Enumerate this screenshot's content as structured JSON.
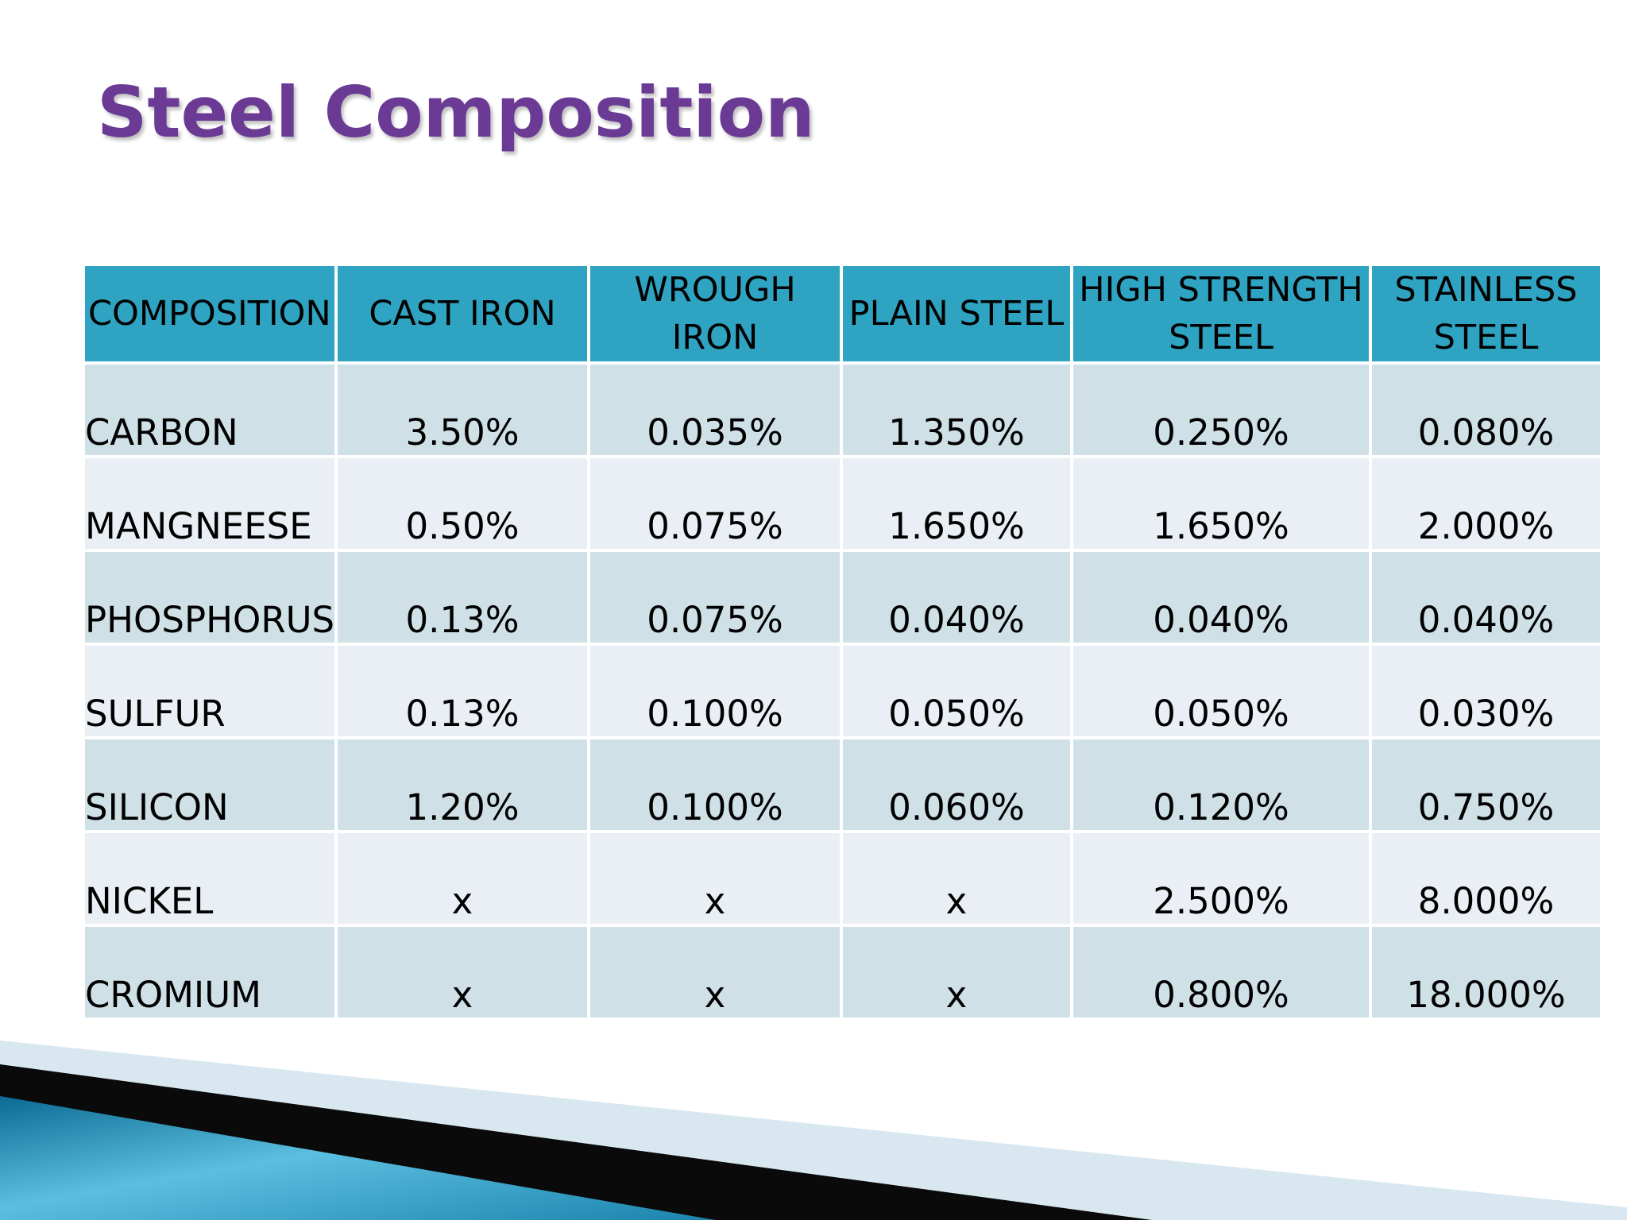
{
  "slide": {
    "title": "Steel Composition"
  },
  "table": {
    "headers": [
      "COMPOSITION",
      "CAST IRON",
      "WROUGH IRON",
      "PLAIN STEEL",
      "HIGH STRENGTH STEEL",
      "STAINLESS STEEL"
    ],
    "rows": [
      {
        "label": "CARBON",
        "values": [
          "3.50%",
          "0.035%",
          "1.350%",
          "0.250%",
          "0.080%"
        ]
      },
      {
        "label": "MANGNEESE",
        "values": [
          "0.50%",
          "0.075%",
          "1.650%",
          "1.650%",
          "2.000%"
        ]
      },
      {
        "label": "PHOSPHORUS",
        "values": [
          "0.13%",
          "0.075%",
          "0.040%",
          "0.040%",
          "0.040%"
        ]
      },
      {
        "label": "SULFUR",
        "values": [
          "0.13%",
          "0.100%",
          "0.050%",
          "0.050%",
          "0.030%"
        ]
      },
      {
        "label": "SILICON",
        "values": [
          "1.20%",
          "0.100%",
          "0.060%",
          "0.120%",
          "0.750%"
        ]
      },
      {
        "label": "NICKEL",
        "values": [
          "x",
          "x",
          "x",
          "2.500%",
          "8.000%"
        ]
      },
      {
        "label": "CROMIUM",
        "values": [
          "x",
          "x",
          "x",
          "0.800%",
          "18.000%"
        ]
      }
    ]
  },
  "colors": {
    "title": "#6a3a94",
    "header_bg": "#2fa4c2",
    "row_dark": "#cfe0e7",
    "row_light": "#e9eff4",
    "accent_blue": "#1e88b0"
  }
}
